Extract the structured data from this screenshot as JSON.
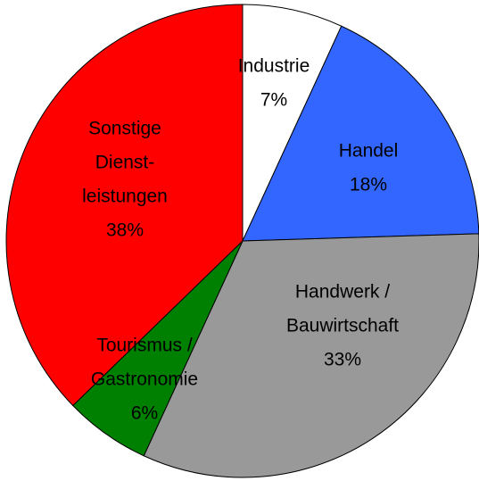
{
  "chart_data": {
    "type": "pie",
    "categories": [
      [
        "Industrie"
      ],
      [
        "Handel"
      ],
      [
        "Handwerk /",
        "Bauwirtschaft"
      ],
      [
        "Tourismus /",
        "Gastronomie"
      ],
      [
        "Sonstige",
        "Dienst-",
        "leistungen"
      ]
    ],
    "values": [
      7,
      18,
      33,
      6,
      38
    ],
    "value_labels": [
      "7%",
      "18%",
      "33%",
      "6%",
      "38%"
    ],
    "colors": [
      "#ffffff",
      "#3366ff",
      "#999999",
      "#008000",
      "#ff0000"
    ]
  }
}
